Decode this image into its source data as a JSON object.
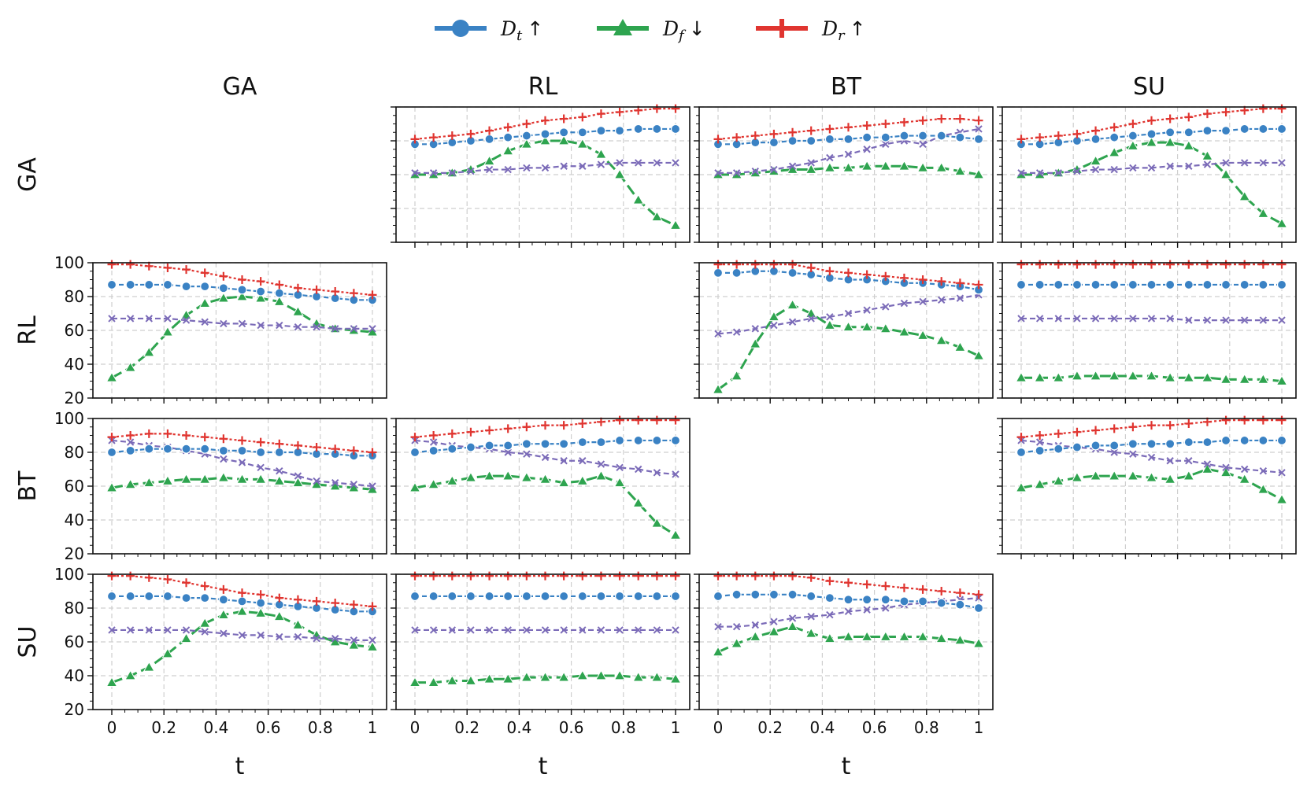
{
  "chart_data": {
    "type": "line",
    "layout": "grid",
    "row_labels": [
      "GA",
      "RL",
      "BT",
      "SU"
    ],
    "col_labels": [
      "GA",
      "RL",
      "BT",
      "SU"
    ],
    "xlabel": "t",
    "x_ticks": [
      "0",
      "0.2",
      "0.4",
      "0.6",
      "0.8",
      "1"
    ],
    "y_ticks": [
      "20",
      "40",
      "60",
      "80",
      "100"
    ],
    "xlim": [
      0,
      1
    ],
    "ylim": [
      20,
      100
    ],
    "grid": true,
    "legend": {
      "placement": "top-center",
      "entries": [
        {
          "symbol": "D",
          "sub": "t",
          "arrow": "↑",
          "color": "#3a82c4",
          "marker": "circle"
        },
        {
          "symbol": "D",
          "sub": "f",
          "arrow": "↓",
          "color": "#2ea44f",
          "marker": "triangle"
        },
        {
          "symbol": "D",
          "sub": "r",
          "arrow": "↑",
          "color": "#e03530",
          "marker": "plus"
        }
      ]
    },
    "extra_series": {
      "color": "#7b6bb8",
      "marker": "x"
    },
    "series_colors": {
      "Dt": "#3a82c4",
      "Df": "#2ea44f",
      "Dr": "#e03530",
      "extra": "#7b6bb8"
    },
    "x": [
      0,
      0.0714,
      0.1429,
      0.2143,
      0.2857,
      0.3571,
      0.4286,
      0.5,
      0.5714,
      0.6429,
      0.7143,
      0.7857,
      0.8571,
      0.9286,
      1.0
    ],
    "panels": [
      {
        "row": "GA",
        "col": "RL",
        "Dt": [
          78,
          78,
          79,
          80,
          81,
          82,
          83,
          84,
          85,
          85,
          86,
          86,
          87,
          87,
          87
        ],
        "Df": [
          60,
          60,
          61,
          63,
          68,
          74,
          78,
          80,
          80,
          78,
          72,
          60,
          45,
          35,
          30
        ],
        "Dr": [
          81,
          82,
          83,
          84,
          86,
          88,
          90,
          92,
          93,
          94,
          96,
          97,
          98,
          99,
          99
        ],
        "extra": [
          61,
          61,
          61,
          62,
          63,
          63,
          64,
          64,
          65,
          65,
          66,
          67,
          67,
          67,
          67
        ]
      },
      {
        "row": "GA",
        "col": "BT",
        "Dt": [
          78,
          78,
          79,
          79,
          80,
          80,
          81,
          81,
          82,
          82,
          83,
          83,
          83,
          82,
          81
        ],
        "Df": [
          60,
          60,
          61,
          62,
          63,
          63,
          64,
          64,
          65,
          65,
          65,
          64,
          64,
          62,
          60
        ],
        "Dr": [
          81,
          82,
          83,
          84,
          85,
          86,
          87,
          88,
          89,
          90,
          91,
          92,
          93,
          93,
          92
        ],
        "extra": [
          61,
          61,
          62,
          63,
          65,
          67,
          70,
          72,
          75,
          78,
          80,
          78,
          83,
          85,
          87
        ]
      },
      {
        "row": "GA",
        "col": "SU",
        "Dt": [
          78,
          78,
          79,
          80,
          81,
          82,
          83,
          84,
          85,
          85,
          86,
          86,
          87,
          87,
          87
        ],
        "Df": [
          60,
          60,
          61,
          63,
          68,
          73,
          77,
          79,
          79,
          77,
          71,
          60,
          47,
          37,
          31
        ],
        "Dr": [
          81,
          82,
          83,
          84,
          86,
          88,
          90,
          92,
          93,
          94,
          96,
          97,
          98,
          99,
          99
        ],
        "extra": [
          61,
          61,
          61,
          62,
          63,
          63,
          64,
          64,
          65,
          65,
          66,
          67,
          67,
          67,
          67
        ]
      },
      {
        "row": "RL",
        "col": "GA",
        "Dt": [
          87,
          87,
          87,
          87,
          86,
          86,
          85,
          84,
          83,
          82,
          81,
          80,
          79,
          78,
          78
        ],
        "Df": [
          32,
          38,
          47,
          59,
          69,
          76,
          79,
          80,
          79,
          77,
          71,
          64,
          61,
          60,
          59
        ],
        "Dr": [
          99,
          99,
          98,
          97,
          96,
          94,
          92,
          90,
          89,
          87,
          85,
          84,
          83,
          82,
          81
        ],
        "extra": [
          67,
          67,
          67,
          67,
          66,
          65,
          64,
          64,
          63,
          63,
          62,
          62,
          61,
          61,
          61
        ]
      },
      {
        "row": "RL",
        "col": "BT",
        "Dt": [
          94,
          94,
          95,
          95,
          94,
          93,
          91,
          90,
          90,
          89,
          88,
          88,
          87,
          86,
          84
        ],
        "Df": [
          25,
          33,
          52,
          68,
          75,
          70,
          63,
          62,
          62,
          61,
          59,
          57,
          54,
          50,
          45
        ],
        "Dr": [
          99,
          99,
          99,
          99,
          99,
          97,
          95,
          94,
          93,
          92,
          91,
          90,
          89,
          88,
          87
        ],
        "extra": [
          58,
          59,
          61,
          63,
          65,
          67,
          68,
          70,
          72,
          74,
          76,
          77,
          78,
          79,
          81
        ]
      },
      {
        "row": "RL",
        "col": "SU",
        "Dt": [
          87,
          87,
          87,
          87,
          87,
          87,
          87,
          87,
          87,
          87,
          87,
          87,
          87,
          87,
          87
        ],
        "Df": [
          32,
          32,
          32,
          33,
          33,
          33,
          33,
          33,
          32,
          32,
          32,
          31,
          31,
          31,
          30
        ],
        "Dr": [
          99,
          99,
          99,
          99,
          99,
          99,
          99,
          99,
          99,
          99,
          99,
          99,
          99,
          99,
          99
        ],
        "extra": [
          67,
          67,
          67,
          67,
          67,
          67,
          67,
          67,
          67,
          66,
          66,
          66,
          66,
          66,
          66
        ]
      },
      {
        "row": "BT",
        "col": "GA",
        "Dt": [
          80,
          81,
          82,
          82,
          82,
          82,
          81,
          81,
          80,
          80,
          80,
          79,
          79,
          78,
          78
        ],
        "Df": [
          59,
          61,
          62,
          63,
          64,
          64,
          65,
          64,
          64,
          63,
          62,
          61,
          60,
          59,
          58
        ],
        "Dr": [
          89,
          90,
          91,
          91,
          90,
          89,
          88,
          87,
          86,
          85,
          84,
          83,
          82,
          81,
          80
        ],
        "extra": [
          87,
          86,
          84,
          83,
          81,
          79,
          76,
          74,
          71,
          69,
          66,
          63,
          62,
          61,
          60
        ]
      },
      {
        "row": "BT",
        "col": "RL",
        "Dt": [
          80,
          81,
          82,
          83,
          84,
          84,
          85,
          85,
          85,
          86,
          86,
          87,
          87,
          87,
          87
        ],
        "Df": [
          59,
          61,
          63,
          65,
          66,
          66,
          65,
          64,
          62,
          63,
          66,
          62,
          50,
          38,
          31
        ],
        "Dr": [
          89,
          90,
          91,
          92,
          93,
          94,
          95,
          96,
          96,
          97,
          98,
          99,
          99,
          99,
          99
        ],
        "extra": [
          87,
          86,
          84,
          83,
          82,
          80,
          79,
          77,
          75,
          75,
          73,
          71,
          70,
          68,
          67
        ]
      },
      {
        "row": "BT",
        "col": "SU",
        "Dt": [
          80,
          81,
          82,
          83,
          84,
          84,
          85,
          85,
          85,
          86,
          86,
          87,
          87,
          87,
          87
        ],
        "Df": [
          59,
          61,
          63,
          65,
          66,
          66,
          66,
          65,
          64,
          66,
          70,
          68,
          64,
          58,
          52
        ],
        "Dr": [
          89,
          90,
          91,
          92,
          93,
          94,
          95,
          96,
          96,
          97,
          98,
          99,
          99,
          99,
          99
        ],
        "extra": [
          87,
          86,
          84,
          83,
          82,
          80,
          79,
          77,
          75,
          75,
          73,
          71,
          70,
          69,
          68
        ]
      },
      {
        "row": "SU",
        "col": "GA",
        "Dt": [
          87,
          87,
          87,
          87,
          86,
          86,
          85,
          84,
          83,
          82,
          81,
          80,
          79,
          78,
          78
        ],
        "Df": [
          36,
          40,
          45,
          53,
          62,
          71,
          76,
          78,
          77,
          75,
          70,
          64,
          60,
          58,
          57
        ],
        "Dr": [
          99,
          99,
          98,
          97,
          95,
          93,
          91,
          89,
          88,
          86,
          85,
          84,
          83,
          82,
          81
        ],
        "extra": [
          67,
          67,
          67,
          67,
          67,
          66,
          65,
          64,
          64,
          63,
          63,
          62,
          62,
          61,
          61
        ]
      },
      {
        "row": "SU",
        "col": "RL",
        "Dt": [
          87,
          87,
          87,
          87,
          87,
          87,
          87,
          87,
          87,
          87,
          87,
          87,
          87,
          87,
          87
        ],
        "Df": [
          36,
          36,
          37,
          37,
          38,
          38,
          39,
          39,
          39,
          40,
          40,
          40,
          39,
          39,
          38
        ],
        "Dr": [
          99,
          99,
          99,
          99,
          99,
          99,
          99,
          99,
          99,
          99,
          99,
          99,
          99,
          99,
          99
        ],
        "extra": [
          67,
          67,
          67,
          67,
          67,
          67,
          67,
          67,
          67,
          67,
          67,
          67,
          67,
          67,
          67
        ]
      },
      {
        "row": "SU",
        "col": "BT",
        "Dt": [
          87,
          88,
          88,
          88,
          88,
          87,
          86,
          85,
          85,
          85,
          84,
          84,
          83,
          82,
          80
        ],
        "Df": [
          54,
          59,
          63,
          66,
          69,
          65,
          62,
          63,
          63,
          63,
          63,
          63,
          62,
          61,
          59
        ],
        "Dr": [
          99,
          99,
          99,
          99,
          99,
          98,
          96,
          95,
          94,
          93,
          92,
          91,
          90,
          89,
          88
        ],
        "extra": [
          69,
          69,
          70,
          72,
          74,
          75,
          76,
          78,
          79,
          80,
          82,
          83,
          84,
          85,
          86
        ]
      }
    ]
  }
}
